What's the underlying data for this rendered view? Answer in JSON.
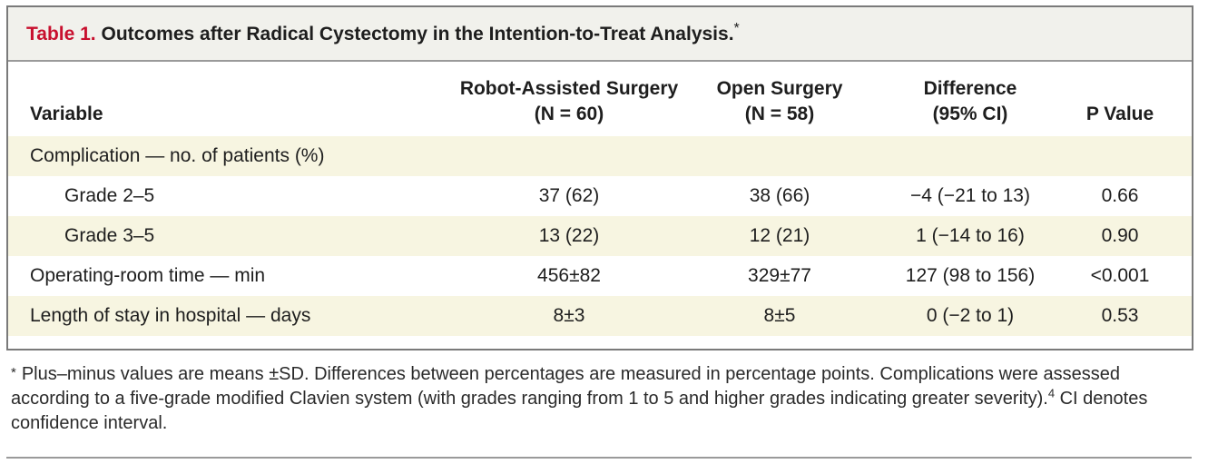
{
  "table": {
    "label": "Table 1.",
    "title": "Outcomes after Radical Cystectomy in the Intention-to-Treat Analysis.",
    "title_mark": "*",
    "headers": {
      "variable": "Variable",
      "robot_line1": "Robot-Assisted Surgery",
      "robot_line2": "(N = 60)",
      "open_line1": "Open Surgery",
      "open_line2": "(N = 58)",
      "diff_line1": "Difference",
      "diff_line2": "(95% CI)",
      "p": "P Value"
    },
    "rows": [
      {
        "variable": "Complication — no. of patients (%)",
        "robot": "",
        "open": "",
        "diff": "",
        "p": ""
      },
      {
        "variable": "Grade 2–5",
        "robot": "37 (62)",
        "open": "38 (66)",
        "diff": "−4 (−21 to 13)",
        "p": "0.66"
      },
      {
        "variable": "Grade 3–5",
        "robot": "13 (22)",
        "open": "12 (21)",
        "diff": "1 (−14 to 16)",
        "p": "0.90"
      },
      {
        "variable": "Operating-room time — min",
        "robot": "456±82",
        "open": "329±77",
        "diff": "127 (98 to 156)",
        "p": "<0.001"
      },
      {
        "variable": "Length of stay in hospital — days",
        "robot": "8±3",
        "open": "8±5",
        "diff": "0 (−2 to 1)",
        "p": "0.53"
      }
    ]
  },
  "footnote": {
    "mark": "*",
    "text_before_ref": "Plus–minus values are means ±SD. Differences between percentages are measured in percentage points. Complications were assessed according to a five-grade modified Clavien system (with grades ranging from 1 to 5 and higher grades indicating greater severity).",
    "ref": "4",
    "text_after_ref": " CI denotes confidence interval."
  },
  "colors": {
    "label_red": "#c8102e",
    "title_bar": "#f1f1ec",
    "row_shade": "#f7f5e1",
    "border": "#7a7a7a"
  }
}
